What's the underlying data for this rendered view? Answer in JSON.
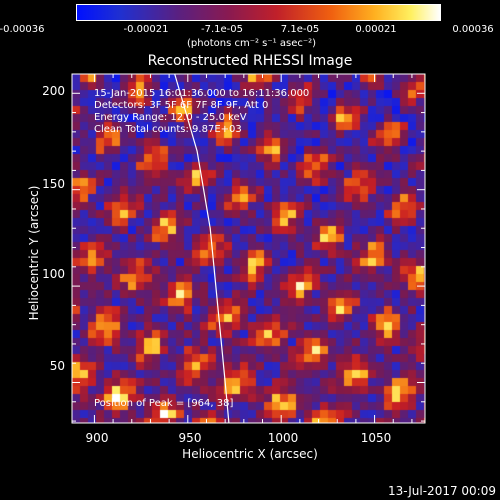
{
  "colorbar": {
    "ticks": [
      "-0.00036",
      "-0.00021",
      "-7.1e-05",
      "7.1e-05",
      "0.00021",
      "0.00036"
    ],
    "units": "(photons cm⁻² s⁻¹ asec⁻²)"
  },
  "chart_data": {
    "type": "heatmap",
    "title": "Reconstructed RHESSI Image",
    "xlabel": "Heliocentric X (arcsec)",
    "ylabel": "Heliocentric Y (arcsec)",
    "xlim": [
      888,
      1077
    ],
    "ylim": [
      29,
      210
    ],
    "x_ticks": [
      "900",
      "950",
      "1000",
      "1050"
    ],
    "y_ticks": [
      "200",
      "150",
      "100",
      "50"
    ],
    "colormap": "blue-purple-red-yellow-white",
    "colorbar_range": [
      -0.00036,
      0.00036
    ],
    "annotations": {
      "time": "15-Jan-2015 16:01:36.000 to 16:11:36.000",
      "detectors": "Detectors: 3F 5F 6F 7F 8F 9F, Att 0",
      "energy": "Energy Range: 12.0 - 25.0 keV",
      "method": "Clean    Total counts: 9.87E+03",
      "peak": "Position of Peak = [964, 38]"
    },
    "limb_curve": [
      [
        943,
        210
      ],
      [
        955,
        170
      ],
      [
        962,
        130
      ],
      [
        966,
        90
      ],
      [
        970,
        50
      ],
      [
        972,
        29
      ]
    ]
  },
  "footer": {
    "date": "13-Jul-2017 00:09"
  }
}
